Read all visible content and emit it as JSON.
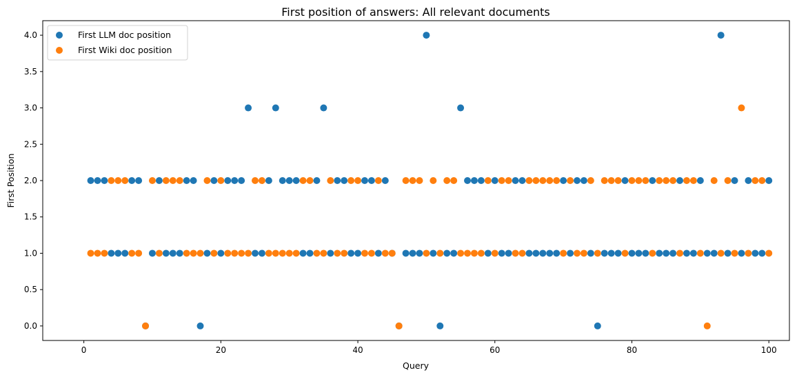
{
  "chart_data": {
    "type": "scatter",
    "title": "First position of answers: All relevant documents",
    "xlabel": "Query",
    "ylabel": "First Position",
    "xlim": [
      -6,
      103
    ],
    "ylim": [
      -0.2,
      4.2
    ],
    "xticks": [
      0,
      20,
      40,
      60,
      80,
      100
    ],
    "xtick_labels": [
      "0",
      "20",
      "40",
      "60",
      "80",
      "100"
    ],
    "yticks": [
      0,
      0.5,
      1,
      1.5,
      2,
      2.5,
      3,
      3.5,
      4
    ],
    "ytick_labels": [
      "0.0",
      "0.5",
      "1.0",
      "1.5",
      "2.0",
      "2.5",
      "3.0",
      "3.5",
      "4.0"
    ],
    "grid": false,
    "legend_position": "top-left",
    "colors": {
      "llm": "#1f77b4",
      "wiki": "#ff7f0e"
    },
    "series": [
      {
        "name": "First LLM doc position",
        "x": [
          1,
          2,
          3,
          4,
          5,
          6,
          7,
          8,
          9,
          10,
          11,
          12,
          13,
          14,
          15,
          16,
          17,
          18,
          19,
          20,
          21,
          22,
          23,
          24,
          25,
          26,
          27,
          28,
          29,
          30,
          31,
          32,
          33,
          34,
          35,
          36,
          37,
          38,
          39,
          40,
          41,
          42,
          43,
          44,
          45,
          46,
          47,
          48,
          49,
          50,
          51,
          52,
          53,
          54,
          55,
          56,
          57,
          58,
          59,
          60,
          61,
          62,
          63,
          64,
          65,
          66,
          67,
          68,
          69,
          70,
          71,
          72,
          73,
          74,
          75,
          76,
          77,
          78,
          79,
          80,
          81,
          82,
          83,
          84,
          85,
          86,
          87,
          88,
          89,
          90,
          91,
          92,
          93,
          94,
          95,
          96,
          97,
          98,
          99,
          100
        ],
        "y": [
          2,
          2,
          2,
          1,
          1,
          1,
          2,
          2,
          0,
          1,
          2,
          1,
          1,
          1,
          2,
          2,
          0,
          1,
          2,
          1,
          2,
          2,
          2,
          3,
          1,
          1,
          2,
          3,
          2,
          2,
          2,
          1,
          1,
          2,
          3,
          1,
          2,
          2,
          1,
          1,
          2,
          2,
          1,
          2,
          1,
          0,
          1,
          1,
          1,
          4,
          1,
          0,
          1,
          1,
          3,
          2,
          2,
          2,
          1,
          2,
          1,
          1,
          2,
          2,
          1,
          1,
          1,
          1,
          1,
          2,
          1,
          2,
          2,
          1,
          0,
          1,
          1,
          1,
          2,
          1,
          1,
          1,
          2,
          1,
          1,
          1,
          2,
          1,
          1,
          2,
          1,
          1,
          4,
          1,
          2,
          1,
          2,
          1,
          1,
          2
        ]
      },
      {
        "name": "First Wiki doc position",
        "x": [
          1,
          2,
          3,
          4,
          5,
          6,
          7,
          8,
          9,
          10,
          11,
          12,
          13,
          14,
          15,
          16,
          17,
          18,
          19,
          20,
          21,
          22,
          23,
          24,
          25,
          26,
          27,
          28,
          29,
          30,
          31,
          32,
          33,
          34,
          35,
          36,
          37,
          38,
          39,
          40,
          41,
          42,
          43,
          44,
          45,
          46,
          47,
          48,
          49,
          50,
          51,
          52,
          53,
          54,
          55,
          56,
          57,
          58,
          59,
          60,
          61,
          62,
          63,
          64,
          65,
          66,
          67,
          68,
          69,
          70,
          71,
          72,
          73,
          74,
          75,
          76,
          77,
          78,
          79,
          80,
          81,
          82,
          83,
          84,
          85,
          86,
          87,
          88,
          89,
          90,
          91,
          92,
          93,
          94,
          95,
          96,
          97,
          98,
          99,
          100
        ],
        "y": [
          1,
          1,
          1,
          2,
          2,
          2,
          1,
          1,
          0,
          2,
          1,
          2,
          2,
          2,
          1,
          1,
          1,
          2,
          1,
          2,
          1,
          1,
          1,
          1,
          2,
          2,
          1,
          1,
          1,
          1,
          1,
          2,
          2,
          1,
          1,
          2,
          1,
          1,
          2,
          2,
          1,
          1,
          2,
          1,
          1,
          0,
          2,
          2,
          2,
          1,
          2,
          1,
          2,
          2,
          1,
          1,
          1,
          1,
          2,
          1,
          2,
          2,
          1,
          1,
          2,
          2,
          2,
          2,
          2,
          1,
          2,
          1,
          1,
          2,
          1,
          2,
          2,
          2,
          1,
          2,
          2,
          2,
          1,
          2,
          2,
          2,
          1,
          2,
          2,
          1,
          0,
          2,
          1,
          2,
          1,
          3,
          1,
          2,
          2,
          1
        ]
      }
    ]
  }
}
